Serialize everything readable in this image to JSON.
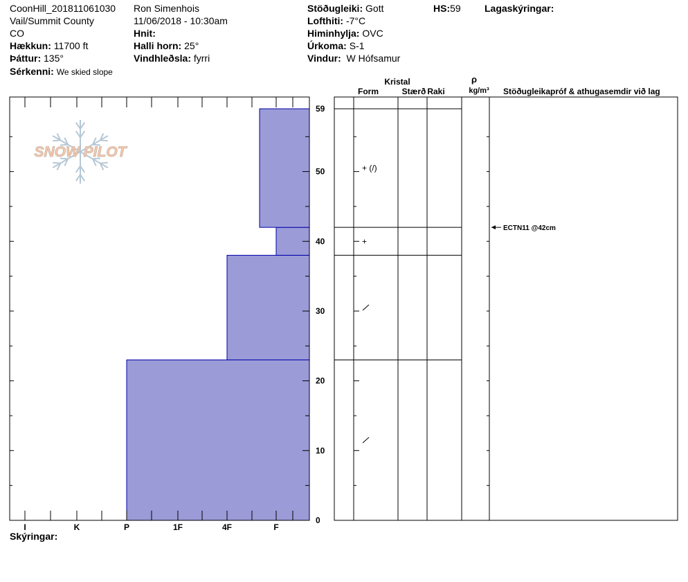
{
  "header": {
    "site": "CoonHill_201811061030",
    "region": "Vail/Summit County",
    "state": "CO",
    "elevation_label": "Hækkun:",
    "elevation": "11700 ft",
    "aspect_label": "Þáttur:",
    "aspect": "135°",
    "features_label": "Sérkenni:",
    "features": "We skied slope",
    "observer": "Ron Simenhois",
    "datetime": "11/06/2018 - 10:30am",
    "coords_label": "Hnit:",
    "slope_label": "Halli horn:",
    "slope": "25°",
    "wind_loading_label": "Vindhleðsla:",
    "wind_loading": "fyrri",
    "stability_label": "Stöðugleiki:",
    "stability": "Gott",
    "air_temp_label": "Lofthiti:",
    "air_temp": "-7°C",
    "sky_label": "Himinhylja:",
    "sky": "OVC",
    "precip_label": "Úrkoma:",
    "precip": "S-1",
    "wind_label": "Vindur:",
    "wind": "W Hófsamur",
    "hs_label": "HS:",
    "hs": "59",
    "layer_notes_label": "Lagaskýringar:"
  },
  "logo": {
    "text": "SNOW PILOT"
  },
  "footer": {
    "notes_label": "Skýringar:"
  },
  "colors": {
    "hardness_fill": "#9b9bd7",
    "hardness_stroke": "#0000aa",
    "logo_text": "#f5c9ae",
    "logo_flake": "#b6c8d4"
  },
  "table_headers": {
    "crystal": "Kristal",
    "form": "Form",
    "size": "Stærð",
    "moisture": "Raki",
    "density_symbol": "ρ",
    "density_unit": "kg/m³",
    "comments": "Stöðugleikapróf & athugasemdir við lag"
  },
  "chart_data": {
    "type": "bar",
    "hardness_scale": [
      "I",
      "K",
      "P",
      "1F",
      "4F",
      "F"
    ],
    "y_ticks": [
      "0",
      "10",
      "20",
      "30",
      "40",
      "50",
      "59"
    ],
    "ylim": [
      0,
      59
    ],
    "layers": [
      {
        "bottom": 0,
        "top": 23,
        "hardness": "P",
        "form": "/"
      },
      {
        "bottom": 23,
        "top": 38,
        "hardness": "4F",
        "form": "/"
      },
      {
        "bottom": 38,
        "top": 42,
        "hardness": "F",
        "form": "+"
      },
      {
        "bottom": 42,
        "top": 59,
        "hardness": "F-",
        "form": "+ (/)"
      }
    ],
    "tests": [
      {
        "height": 42,
        "text": "ECTN11 @42cm"
      }
    ]
  }
}
